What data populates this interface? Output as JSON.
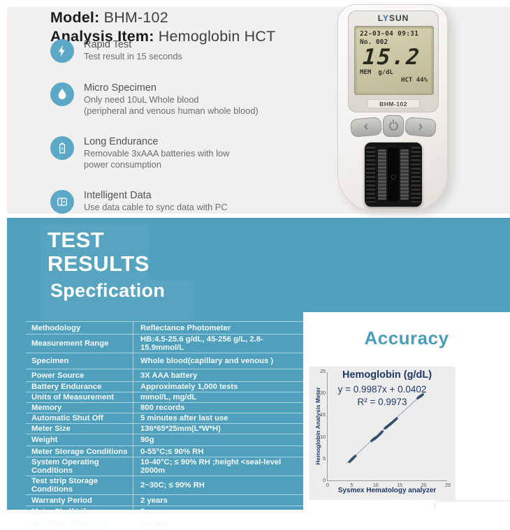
{
  "header": {
    "model_label": "Model:",
    "model_value": "BHM-102",
    "analysis_label": "Analysis Item:",
    "analysis_value": "Hemoglobin HCT"
  },
  "features": [
    {
      "icon": "lightning-icon",
      "title": "Rapid Test",
      "lines": [
        "Test result in 15 seconds"
      ]
    },
    {
      "icon": "drop-icon",
      "title": "Micro Specimen",
      "lines": [
        "Only need 10uL Whole blood",
        "(peripheral and venous human whole blood)"
      ]
    },
    {
      "icon": "battery-icon",
      "title": "Long Endurance",
      "lines": [
        "Removable 3xAAA batteries with low",
        "power consumption"
      ]
    },
    {
      "icon": "data-icon",
      "title": "Intelligent Data",
      "lines": [
        "Use data cable to sync data with PC"
      ]
    }
  ],
  "device": {
    "brand": {
      "prefix": "L",
      "accent": "Y",
      "suffix": "SUN"
    },
    "lcd": {
      "datetime": "22-03-04 09:31",
      "record": "No. 002",
      "reading": "15.2",
      "mem": "MEM",
      "unit": "g/dL",
      "hct_label": "HCT",
      "hct_value": "44%"
    },
    "model": "BHM-102",
    "buttons": {
      "left": "‹",
      "right": "›"
    }
  },
  "band": {
    "title1": "TEST",
    "title2": "RESULTS",
    "subtitle": "Specfication"
  },
  "spec_table": {
    "rows": [
      {
        "label": "Methodology",
        "value": "Reflectance Photometer",
        "h": 18
      },
      {
        "label": "Measurement Range",
        "value": "HB:4.5-25.6 g/dL, 45-256 g/L, 2.8-15.9mmol/L",
        "h": 17
      },
      {
        "label": "Specimen",
        "value": "Whole blood(capillary and venous )",
        "h": 23
      },
      {
        "label": "Power Source",
        "value": "3X AAA battery",
        "h": 18
      },
      {
        "label": "Battery Endurance",
        "value": "Approximately 1,000 tests",
        "h": 15
      },
      {
        "label": "Units of Measurement",
        "value": "mmol/L, mg/dL",
        "h": 14
      },
      {
        "label": "Memory",
        "value": "800 records",
        "h": 15
      },
      {
        "label": "Automatic Shut Off",
        "value": "5 minutes  after last use",
        "h": 14
      },
      {
        "label": "Meter Size",
        "value": "136*65*25mm(L*W*H)",
        "h": 15
      },
      {
        "label": "Weight",
        "value": "90g",
        "h": 17
      },
      {
        "label": "Meter Storage Conditions",
        "value": "0-55°C;≤ 90% RH",
        "h": 16
      },
      {
        "label": "System Operating Conditions",
        "value": "10-40°C; ≤ 90% RH ;height <seal-level 2000m",
        "h": 16
      },
      {
        "label": "Test strip Storage Conditions",
        "value": "2~30C; ≤ 90% RH",
        "h": 16
      },
      {
        "label": "Warranty Period",
        "value": "2 years",
        "h": 16
      },
      {
        "label": "Meter Shelf Life",
        "value": "5years",
        "h": 16
      },
      {
        "label": "Test Strip Shelf Life",
        "value": "2 years",
        "h": 18
      }
    ]
  },
  "accuracy": {
    "title": "Accuracy"
  },
  "chart_data": {
    "type": "scatter",
    "title": "Hemoglobin (g/dL)",
    "equation": "y = 0.9987x + 0.0402",
    "r_squared": "R² = 0.9973",
    "xlabel": "Sysmex Hematology analyzer",
    "ylabel": "Hemoglobin Analysis Meter",
    "xlim": [
      0,
      25
    ],
    "ylim": [
      0,
      25
    ],
    "xticks": [
      0,
      5,
      10,
      15,
      20,
      25
    ],
    "yticks": [
      0,
      5,
      10,
      15,
      20,
      25
    ],
    "grid": false,
    "trendline": {
      "x1": 3.9,
      "y1": 4.0,
      "x2": 20.3,
      "y2": 20.6
    },
    "points": [
      [
        4.7,
        4.6
      ],
      [
        4.9,
        4.8
      ],
      [
        5.0,
        5.0
      ],
      [
        5.2,
        5.1
      ],
      [
        5.4,
        5.4
      ],
      [
        5.6,
        5.6
      ],
      [
        9.3,
        9.4
      ],
      [
        9.5,
        9.6
      ],
      [
        9.7,
        9.7
      ],
      [
        9.9,
        9.9
      ],
      [
        10.1,
        10.0
      ],
      [
        10.3,
        10.2
      ],
      [
        10.5,
        10.4
      ],
      [
        10.8,
        10.7
      ],
      [
        11.0,
        11.0
      ],
      [
        11.2,
        11.2
      ],
      [
        12.1,
        12.3
      ],
      [
        12.4,
        12.5
      ],
      [
        12.6,
        12.7
      ],
      [
        12.8,
        12.9
      ],
      [
        13.0,
        13.1
      ],
      [
        13.2,
        13.2
      ],
      [
        13.5,
        13.5
      ],
      [
        13.8,
        13.8
      ],
      [
        14.0,
        14.0
      ],
      [
        14.2,
        14.2
      ],
      [
        18.9,
        19.2
      ],
      [
        19.3,
        19.5
      ],
      [
        19.6,
        19.7
      ]
    ],
    "point_color": "#33506f",
    "trendline_color": "#90a0b4"
  }
}
